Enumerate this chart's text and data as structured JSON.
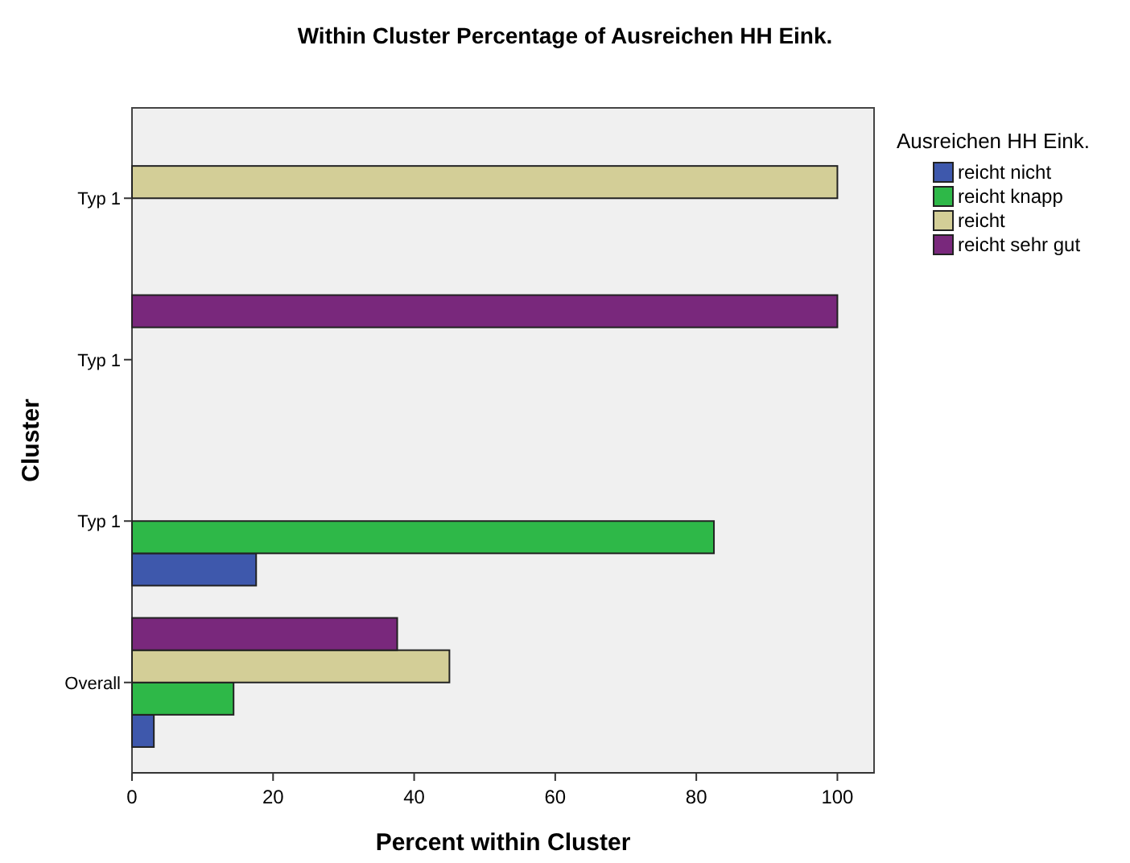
{
  "chart_data": {
    "type": "bar",
    "orientation": "horizontal",
    "title": "Within Cluster Percentage of Ausreichen HH Eink.",
    "xlabel": "Percent within Cluster",
    "ylabel": "Cluster",
    "legend_title": "Ausreichen HH Eink.",
    "legend": "top right",
    "categories": [
      "Typ 1",
      "Typ 1",
      "Typ 1",
      "Overall"
    ],
    "series": [
      {
        "name": "reicht nicht",
        "color": "#3e58ac",
        "values": [
          0,
          0,
          17.6,
          3.1
        ]
      },
      {
        "name": "reicht knapp",
        "color": "#2eb848",
        "values": [
          0,
          0,
          82.5,
          14.4
        ]
      },
      {
        "name": "reicht",
        "color": "#d3ce97",
        "values": [
          100,
          0,
          0,
          45
        ]
      },
      {
        "name": "reicht sehr gut",
        "color": "#79287c",
        "values": [
          0,
          100,
          0,
          37.6
        ]
      }
    ],
    "xlim": [
      0,
      105.2
    ],
    "xticks": [
      0,
      20,
      40,
      60,
      80,
      100
    ]
  }
}
